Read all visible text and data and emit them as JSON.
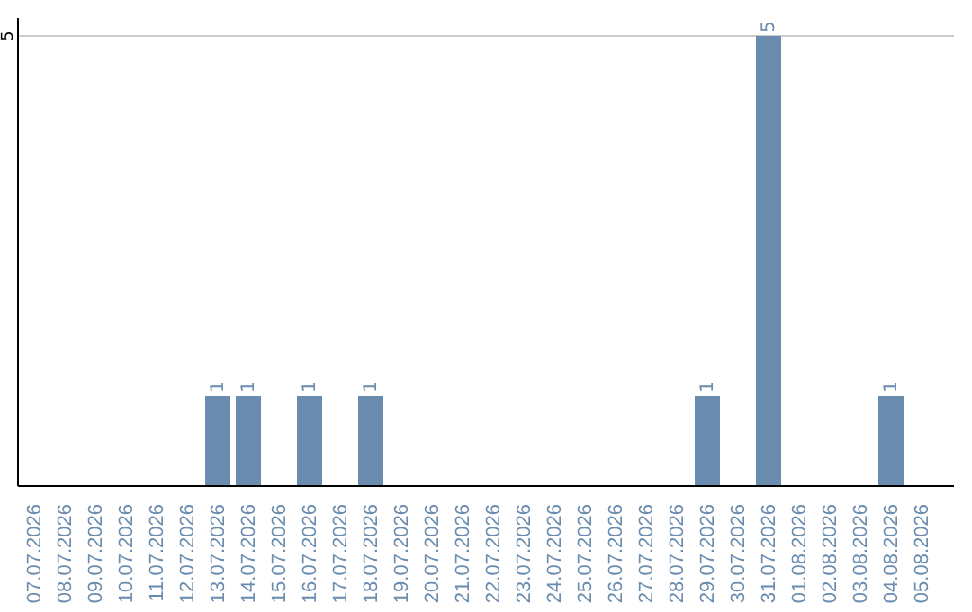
{
  "chart_data": {
    "type": "bar",
    "categories": [
      "07.07.2026",
      "08.07.2026",
      "09.07.2026",
      "10.07.2026",
      "11.07.2026",
      "12.07.2026",
      "13.07.2026",
      "14.07.2026",
      "15.07.2026",
      "16.07.2026",
      "17.07.2026",
      "18.07.2026",
      "19.07.2026",
      "20.07.2026",
      "21.07.2026",
      "22.07.2026",
      "23.07.2026",
      "24.07.2026",
      "25.07.2026",
      "26.07.2026",
      "27.07.2026",
      "28.07.2026",
      "29.07.2026",
      "30.07.2026",
      "31.07.2026",
      "01.08.2026",
      "02.08.2026",
      "03.08.2026",
      "04.08.2026",
      "05.08.2026"
    ],
    "values": [
      0,
      0,
      0,
      0,
      0,
      0,
      1,
      1,
      0,
      1,
      0,
      1,
      0,
      0,
      0,
      0,
      0,
      0,
      0,
      0,
      0,
      0,
      1,
      0,
      5,
      0,
      0,
      0,
      1,
      0
    ],
    "value_labels": [
      null,
      null,
      null,
      null,
      null,
      null,
      "1",
      "1",
      null,
      "1",
      null,
      "1",
      null,
      null,
      null,
      null,
      null,
      null,
      null,
      null,
      null,
      null,
      "1",
      null,
      "5",
      null,
      null,
      null,
      "1",
      null
    ],
    "color": "#6a8caf",
    "ylim": [
      0,
      5.2
    ],
    "yticks": [
      5
    ],
    "grid": "y"
  }
}
